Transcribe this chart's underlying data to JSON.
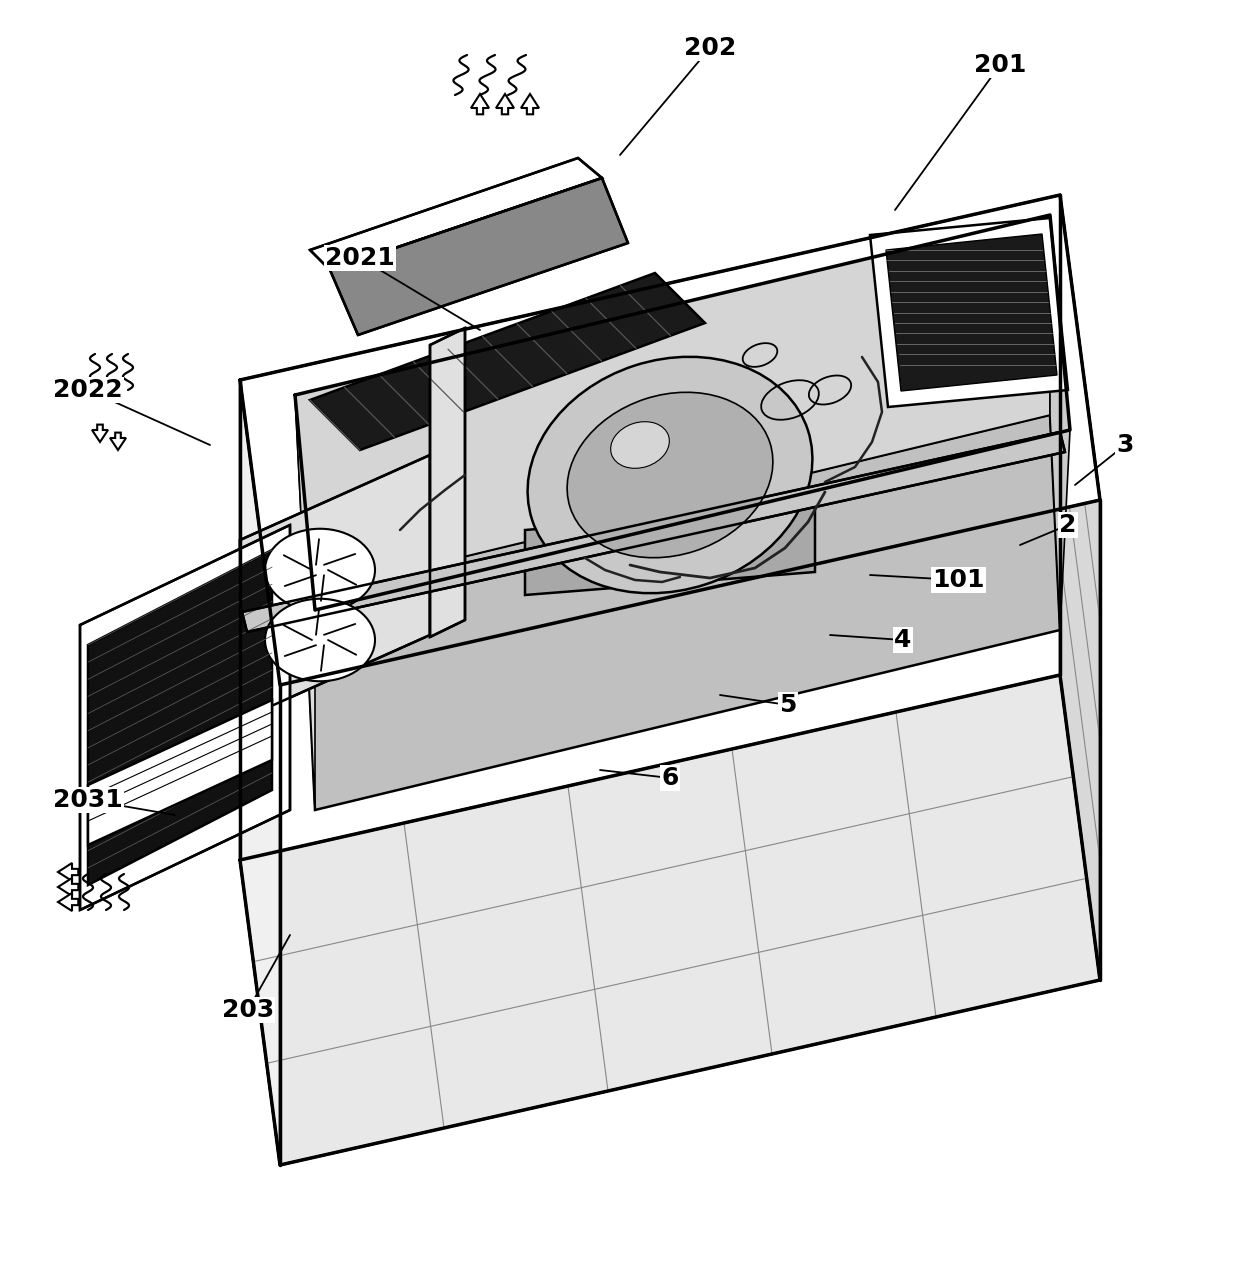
{
  "bg_color": "#ffffff",
  "line_color": "#000000",
  "fig_width": 12.4,
  "fig_height": 12.67,
  "annotations": [
    [
      "201",
      1000,
      65,
      895,
      210
    ],
    [
      "202",
      710,
      48,
      620,
      155
    ],
    [
      "2021",
      360,
      258,
      480,
      330
    ],
    [
      "2022",
      88,
      390,
      210,
      445
    ],
    [
      "2031",
      88,
      800,
      175,
      815
    ],
    [
      "203",
      248,
      1010,
      290,
      935
    ],
    [
      "3",
      1125,
      445,
      1075,
      485
    ],
    [
      "2",
      1068,
      525,
      1020,
      545
    ],
    [
      "101",
      958,
      580,
      870,
      575
    ],
    [
      "4",
      903,
      640,
      830,
      635
    ],
    [
      "5",
      788,
      705,
      720,
      695
    ],
    [
      "6",
      670,
      778,
      600,
      770
    ]
  ]
}
